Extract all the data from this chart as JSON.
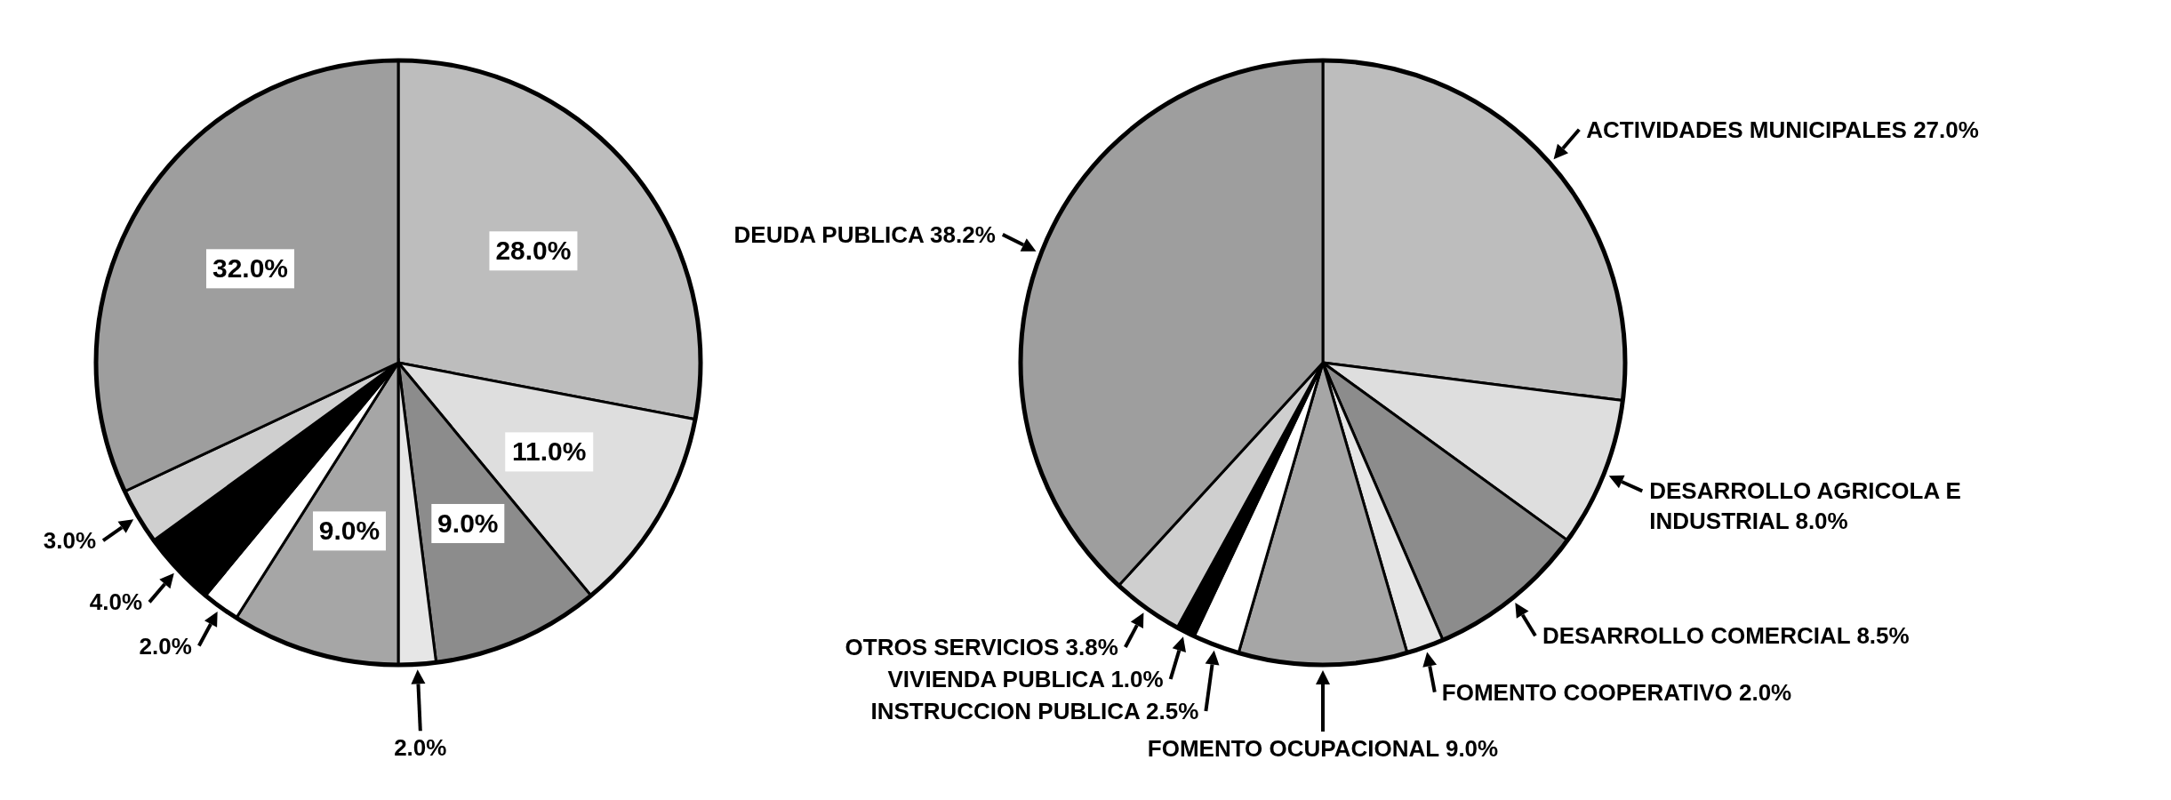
{
  "chart_data": [
    {
      "type": "pie",
      "categories": [
        null,
        null,
        null,
        null,
        null,
        null,
        null,
        null,
        null
      ],
      "values": [
        28.0,
        11.0,
        9.0,
        2.0,
        9.0,
        2.0,
        4.0,
        3.0,
        32.0
      ],
      "value_labels": [
        "28.0%",
        "11.0%",
        "9.0%",
        "2.0%",
        "9.0%",
        "2.0%",
        "4.0%",
        "3.0%",
        "32.0%"
      ],
      "colors": [
        "#bdbdbd",
        "#dedede",
        "#8c8c8c",
        "#e6e6e6",
        "#a6a6a6",
        "#ffffff",
        "#000000",
        "#cfcfcf",
        "#9e9e9e"
      ]
    },
    {
      "type": "pie",
      "categories": [
        "ACTIVIDADES MUNICIPALES",
        "DESARROLLO AGRICOLA E INDUSTRIAL",
        "DESARROLLO COMERCIAL",
        "FOMENTO COOPERATIVO",
        "FOMENTO OCUPACIONAL",
        "INSTRUCCION PUBLICA",
        "VIVIENDA PUBLICA",
        "OTROS SERVICIOS",
        "DEUDA PUBLICA"
      ],
      "values": [
        27.0,
        8.0,
        8.5,
        2.0,
        9.0,
        2.5,
        1.0,
        3.8,
        38.2
      ],
      "value_labels": [
        "27.0%",
        "8.0%",
        "8.5%",
        "2.0%",
        "9.0%",
        "2.5%",
        "1.0%",
        "3.8%",
        "38.2%"
      ],
      "colors": [
        "#bdbdbd",
        "#dedede",
        "#8c8c8c",
        "#e6e6e6",
        "#a6a6a6",
        "#ffffff",
        "#000000",
        "#cfcfcf",
        "#9e9e9e"
      ]
    }
  ]
}
